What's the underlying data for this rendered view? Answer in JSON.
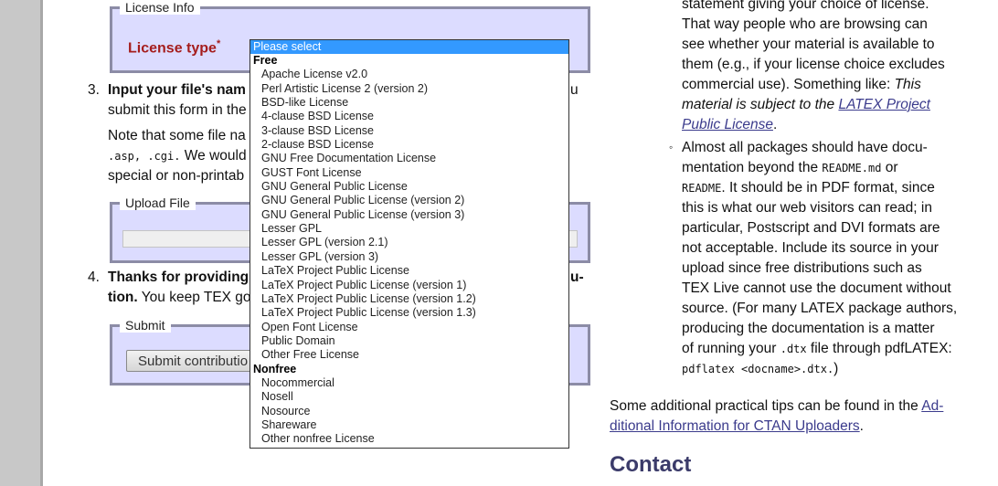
{
  "license_box": {
    "legend": "License Info",
    "license_type_label": "License type",
    "required_mark": "*"
  },
  "step3": {
    "number": "3.",
    "line1_bold": "Input your file's nam",
    "line1_tail": "u",
    "line2": "submit this form in the",
    "note_line1": "Note that some file na",
    "note_line2_code": ".asp, .cgi.",
    "note_line2_tail": " We would",
    "note_line3": "special or non-printab"
  },
  "upload_box": {
    "legend": "Upload File"
  },
  "step4": {
    "number": "4.",
    "line1_bold": "Thanks for providing",
    "line1_tail": "u-",
    "line2_bold": "tion.",
    "line2_tail": " You keep TEX go"
  },
  "submit_box": {
    "legend": "Submit",
    "button_label": "Submit contributio"
  },
  "dropdown": {
    "selected": "Please select",
    "groups": [
      {
        "label": "Free",
        "options": [
          "Apache License v2.0",
          "Perl Artistic License 2 (version 2)",
          "BSD-like License",
          "4-clause BSD License",
          "3-clause BSD License",
          "2-clause BSD License",
          "GNU Free Documentation License",
          "GUST Font License",
          "GNU General Public License",
          "GNU General Public License (version 2)",
          "GNU General Public License (version 3)",
          "Lesser GPL",
          "Lesser GPL (version 2.1)",
          "Lesser GPL (version 3)",
          "LaTeX Project Public License",
          "LaTeX Project Public License (version 1)",
          "LaTeX Project Public License (version 1.2)",
          "LaTeX Project Public License (version 1.3)",
          "Open Font License",
          "Public Domain",
          "Other Free License"
        ]
      },
      {
        "label": "Nonfree",
        "options": [
          "Nocommercial",
          "Nosell",
          "Nosource",
          "Shareware",
          "Other nonfree License"
        ]
      }
    ]
  },
  "right": {
    "p1": [
      "statement giving your choice of license.",
      "That way people who are browsing can",
      "see whether your material is available to",
      "them (e.g., if your license choice excludes",
      "commercial use). Something like:"
    ],
    "p1_italic": "This",
    "p1_italic_line": "material is subject to the",
    "p1_link_a": "LATEX Project",
    "p1_link_b": "Public License",
    "bullet": "◦",
    "p2_l1": "Almost all packages should have docu-",
    "p2_l2a": "mentation beyond the",
    "p2_l2_code1": "README.md",
    "p2_l2b": " or",
    "p2_l3_code": "README",
    "p2_l3": ". It should be in PDF format, since",
    "p2_l4": "this is what our web visitors can read; in",
    "p2_l5": "particular, Postscript and DVI formats are",
    "p2_l6": "not acceptable. Include its source in your",
    "p2_l7": "upload since free distributions such as",
    "p2_l8": "TEX Live cannot use the document without",
    "p2_l9": "source. (For many LATEX package authors,",
    "p2_l10": "producing the documentation is a matter",
    "p2_l11a": "of running your",
    "p2_l11_code": ".dtx",
    "p2_l11b": " file through pdfLATEX:",
    "p2_l12_code": "pdflatex <docname>.dtx.",
    "p2_l12b": ")",
    "p3_a": "Some additional practical tips can be found in the",
    "p3_link1": "Ad-",
    "p3_link2": "ditional Information for CTAN Uploaders",
    "p3_end": ".",
    "contact": "Contact"
  }
}
